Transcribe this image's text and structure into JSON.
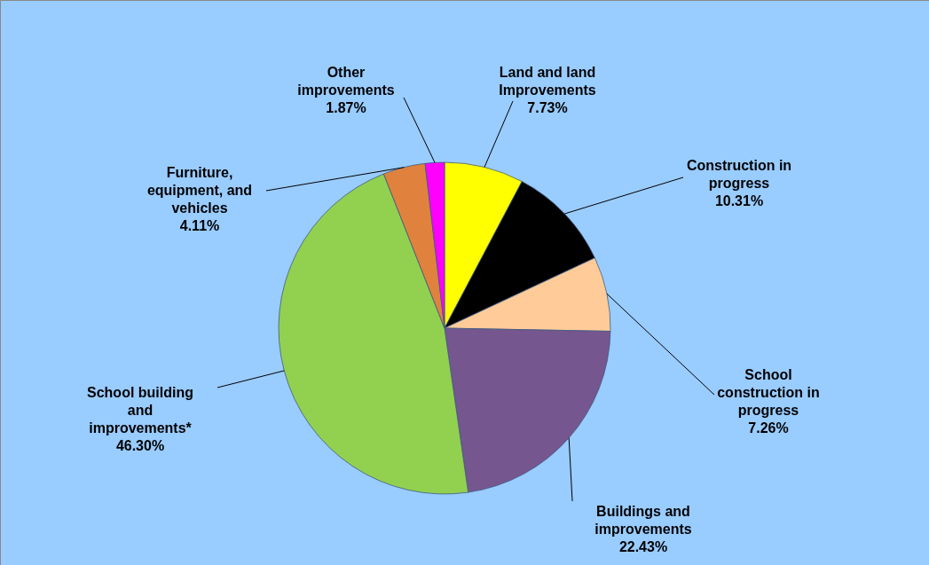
{
  "chart_data": {
    "type": "pie",
    "categories": [
      "Land and land Improvements",
      "Construction in progress",
      "School construction in progress",
      "Buildings and improvements",
      "School building and improvements*",
      "Furniture, equipment, and vehicles",
      "Other improvements"
    ],
    "values": [
      7.73,
      10.31,
      7.26,
      22.43,
      46.3,
      4.11,
      1.87
    ],
    "value_labels": [
      "7.73%",
      "10.31%",
      "7.26%",
      "22.43%",
      "46.30%",
      "4.11%",
      "1.87%"
    ],
    "colors": [
      "#ffff00",
      "#000000",
      "#ffcc99",
      "#76568f",
      "#92d050",
      "#e0823d",
      "#ff00ff"
    ]
  }
}
